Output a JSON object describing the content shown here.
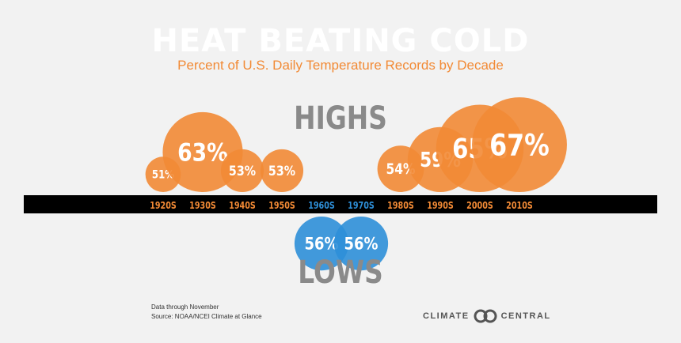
{
  "header": {
    "title": "HEAT BEATING COLD",
    "subtitle": "Percent of U.S. Daily Temperature Records by Decade"
  },
  "labels": {
    "highs": "HIGHS",
    "lows": "LOWS"
  },
  "chart_data": {
    "type": "bubble",
    "title": "HEAT BEATING COLD",
    "subtitle": "Percent of U.S. Daily Temperature Records by Decade",
    "categories": [
      "1920S",
      "1930S",
      "1940S",
      "1950S",
      "1960S",
      "1970S",
      "1980S",
      "1990S",
      "2000S",
      "2010S"
    ],
    "series": [
      {
        "name": "HIGHS",
        "color": "#f28a35",
        "values": [
          51,
          63,
          53,
          53,
          null,
          null,
          54,
          59,
          65,
          67
        ]
      },
      {
        "name": "LOWS",
        "color": "#2e8fd8",
        "values": [
          null,
          null,
          null,
          null,
          56,
          56,
          null,
          null,
          null,
          null
        ]
      }
    ],
    "category_colors": [
      "#f28a35",
      "#f28a35",
      "#f28a35",
      "#f28a35",
      "#2e8fd8",
      "#2e8fd8",
      "#f28a35",
      "#f28a35",
      "#f28a35",
      "#f28a35"
    ],
    "value_suffix": "%"
  },
  "footnote": {
    "line1": "Data through November",
    "line2": "Source: NOAA/NCEI Climate at Glance"
  },
  "logo": {
    "left_text": "CLIMATE",
    "right_text": "CENTRAL"
  },
  "colors": {
    "high": "#f28a35",
    "low": "#2e8fd8",
    "band": "#000000"
  }
}
